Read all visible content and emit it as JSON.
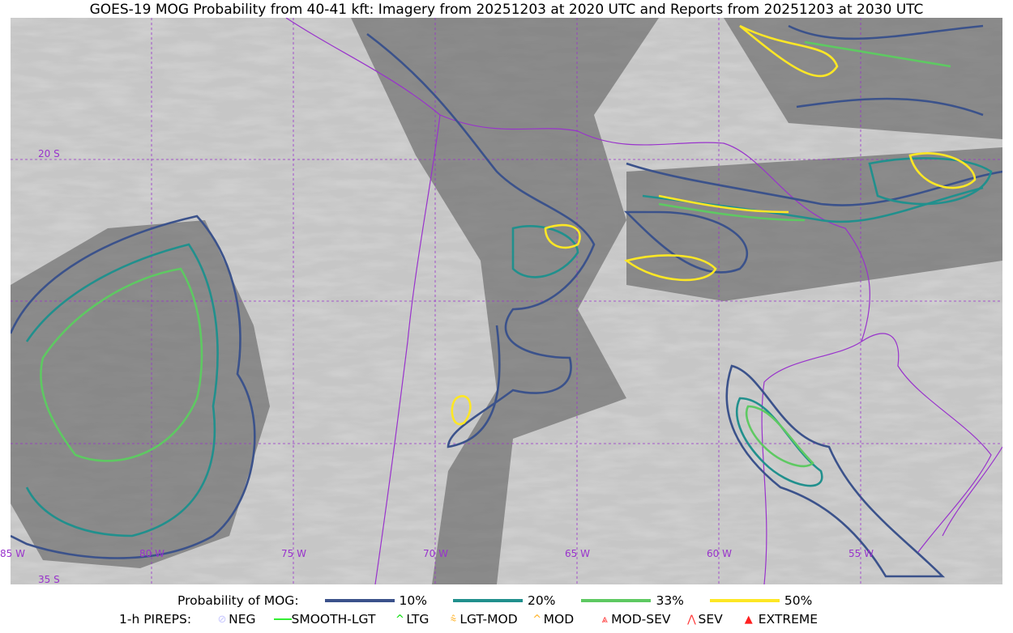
{
  "title": "GOES-19 MOG Probability from 40-41 kft: Imagery from 20251203 at 2020 UTC and Reports from 20251203 at 2030 UTC",
  "map": {
    "longitude_labels": [
      "85 W",
      "80 W",
      "75 W",
      "70 W",
      "65 W",
      "60 W",
      "55 W"
    ],
    "latitude_labels": [
      "20 S",
      "35 S"
    ],
    "gridline_color": "#9933cc",
    "border_color": "#9933cc"
  },
  "legend": {
    "probability_label": "Probability of MOG:",
    "levels": [
      {
        "label": "10%",
        "color": "#3b528b"
      },
      {
        "label": "20%",
        "color": "#21908d"
      },
      {
        "label": "33%",
        "color": "#5ec962"
      },
      {
        "label": "50%",
        "color": "#fde725"
      }
    ],
    "pireps_label": "1-h PIREPS:",
    "pireps": [
      {
        "label": "NEG",
        "icon": "neg-circle-icon",
        "color": "#c8c8ff"
      },
      {
        "label": "SMOOTH-LGT",
        "icon": "line-icon",
        "color": "#33ee33"
      },
      {
        "label": "LTG",
        "icon": "caret-icon",
        "color": "#00dd00"
      },
      {
        "label": "LGT-MOD",
        "icon": "lgt-mod-icon",
        "color": "#ffb020"
      },
      {
        "label": "MOD",
        "icon": "caret-icon",
        "color": "#ffb020"
      },
      {
        "label": "MOD-SEV",
        "icon": "mod-sev-icon",
        "color": "#ff3333"
      },
      {
        "label": "SEV",
        "icon": "sev-icon",
        "color": "#ff3333"
      },
      {
        "label": "EXTREME",
        "icon": "triangle-icon",
        "color": "#ff2020"
      }
    ]
  }
}
